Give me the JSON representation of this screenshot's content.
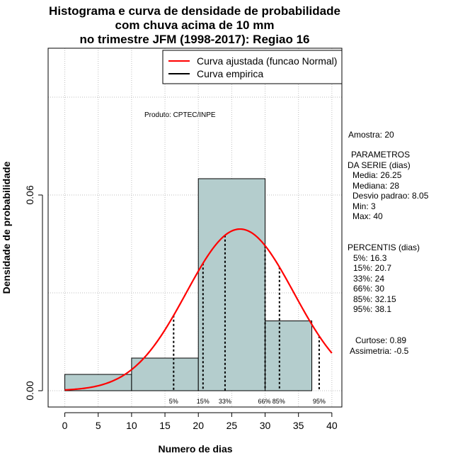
{
  "title_lines": [
    "Histograma e curva de densidade de probabilidade",
    "com chuva acima de 10 mm",
    "no trimestre JFM (1998-2017): Regiao 16"
  ],
  "product_label": "Produto: CPTEC/INPE",
  "legend": {
    "fitted": "Curva ajustada (funcao Normal)",
    "empirical": "Curva empirica",
    "fitted_color": "#ff0000",
    "empirical_color": "#000000"
  },
  "colors": {
    "bar_fill": "#b4cdcd",
    "curve": "#ff0000"
  },
  "stats": {
    "sample": "Amostra: 20",
    "params_header_1": "PARAMETROS",
    "params_header_2": "DA SERIE (dias)",
    "media": "Media: 26.25",
    "mediana": "Mediana: 28",
    "desvio": "Desvio padrao: 8.05",
    "min": "Min: 3",
    "max": "Max: 40",
    "percentis_header": "PERCENTIS (dias)",
    "p5": "5%: 16.3",
    "p15": "15%: 20.7",
    "p33": "33%: 24",
    "p66": "66%: 30",
    "p85": "85%: 32.15",
    "p95": "95%: 38.1",
    "curtose": "Curtose: 0.89",
    "assimetria": "Assimetria: -0.5"
  },
  "chart_data": {
    "type": "bar",
    "title": "Histograma e curva de densidade de probabilidade com chuva acima de 10 mm no trimestre JFM (1998-2017): Regiao 16",
    "xlabel": "Numero de dias",
    "ylabel": "Densidade de probabilidade",
    "xlim": [
      -2.5,
      41.5
    ],
    "ylim": [
      -0.005,
      0.105
    ],
    "x_ticks": [
      0,
      5,
      10,
      15,
      20,
      25,
      30,
      35,
      40
    ],
    "y_ticks": [
      0.0,
      0.06
    ],
    "y_tick_labels": [
      "0.00",
      "0.06"
    ],
    "grid": true,
    "legend_position": "top-right",
    "bins": [
      {
        "from": 0,
        "to": 10,
        "density": 0.005
      },
      {
        "from": 10,
        "to": 20,
        "density": 0.01
      },
      {
        "from": 20,
        "to": 30,
        "density": 0.065
      },
      {
        "from": 30,
        "to": 37,
        "density": 0.0214
      }
    ],
    "normal_fit": {
      "mean": 26.25,
      "sd": 8.05,
      "x_from": 0,
      "x_to": 40
    },
    "percentiles": [
      {
        "label": "5%",
        "value": 16.3
      },
      {
        "label": "15%",
        "value": 20.7
      },
      {
        "label": "33%",
        "value": 24
      },
      {
        "label": "66%",
        "value": 30
      },
      {
        "label": "85%",
        "value": 32.15
      },
      {
        "label": "95%",
        "value": 38.1
      }
    ]
  }
}
